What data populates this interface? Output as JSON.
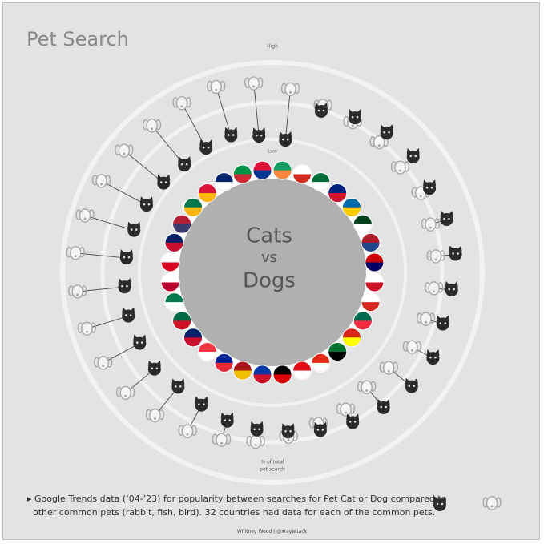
{
  "chart_data": {
    "type": "radial-dumbbell",
    "title": "Pet Search",
    "center_text": [
      "Cats",
      "vs",
      "Dogs"
    ],
    "axis_label": [
      "% of total",
      "pet search"
    ],
    "ylim": [
      0,
      100
    ],
    "yticks": [
      {
        "value": 0,
        "label": "Low"
      },
      {
        "value": 100,
        "label": "High"
      }
    ],
    "series": [
      {
        "color": "#2b2b2b",
        "values": [
          12,
          48,
          55,
          60,
          62,
          58,
          62,
          64,
          60,
          58,
          62,
          60,
          55,
          50,
          45,
          40,
          38,
          35,
          30,
          28,
          32,
          30,
          30,
          28,
          26,
          24,
          22,
          20,
          18,
          20,
          22,
          16
        ]
      },
      {
        "color": "#a8a8a8",
        "values": [
          64,
          54,
          50,
          48,
          45,
          48,
          45,
          44,
          42,
          40,
          38,
          30,
          28,
          35,
          38,
          45,
          50,
          55,
          60,
          65,
          70,
          72,
          74,
          76,
          78,
          76,
          74,
          72,
          70,
          72,
          74,
          70
        ]
      }
    ],
    "footnote": [
      "Google Trends data (‘04-’23) for popularity between searches for Pet Cat or Dog compared to",
      "other common pets (rabbit, fish, bird). 32 countries had data for each of the common pets."
    ],
    "credit": "Whitney Wood | @xrayattack"
  }
}
